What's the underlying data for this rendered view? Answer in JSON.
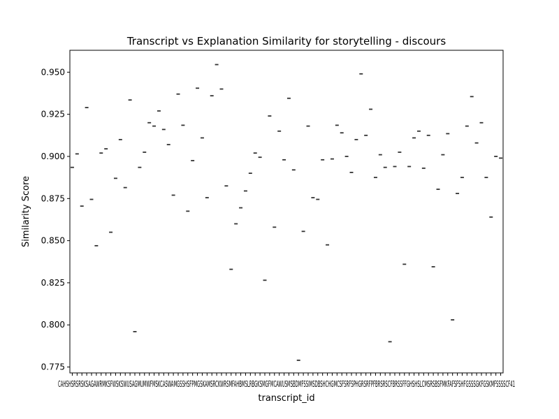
{
  "chart_data": {
    "type": "box",
    "title": "Transcript vs Explanation Similarity for storytelling - discours",
    "xlabel": "transcript_id",
    "ylabel": "Similarity Score",
    "ylim": [
      0.7715,
      0.963
    ],
    "yticks": [
      0.775,
      0.8,
      0.825,
      0.85,
      0.875,
      0.9,
      0.925,
      0.95
    ],
    "ytick_labels": [
      "0.775",
      "0.800",
      "0.825",
      "0.850",
      "0.875",
      "0.900",
      "0.925",
      "0.950"
    ],
    "grid": false,
    "legend": "none",
    "x_labels_truncated": true,
    "first_xtick_label": "CA",
    "last_xtick_label": "41",
    "overlapping_xtick_text": "CAHSHSRSRSKSAGAWRMKSFWSKSWUSAGMUMWFMSKCASWAMGSSHSFPMGSKAMSRCKWRSMFAHBMSLRBGKSMGFMCAWUSMSBDMFSSIMSDBSHCHGMCSFSRFSPHGRSRFPFBRSRSCFBRSSFFGHSHSLCMSRSBSFMKFAFSFSHFGSSSGKFGSKMFSSSSCF41",
    "values": [
      0.8935,
      0.9015,
      0.8705,
      0.929,
      0.8745,
      0.847,
      0.902,
      0.9045,
      0.855,
      0.887,
      0.91,
      0.8815,
      0.9335,
      0.796,
      0.8935,
      0.9025,
      0.92,
      0.918,
      0.927,
      0.916,
      0.907,
      0.877,
      0.937,
      0.9185,
      0.8675,
      0.8975,
      0.9405,
      0.911,
      0.8755,
      0.936,
      0.9545,
      0.94,
      0.8825,
      0.833,
      0.86,
      0.8695,
      0.8795,
      0.89,
      0.902,
      0.8995,
      0.8265,
      0.924,
      0.858,
      0.915,
      0.898,
      0.9345,
      0.892,
      0.779,
      0.8555,
      0.918,
      0.8755,
      0.8745,
      0.898,
      0.8475,
      0.8985,
      0.9185,
      0.914,
      0.9,
      0.8905,
      0.91,
      0.949,
      0.9125,
      0.928,
      0.8875,
      0.901,
      0.8935,
      0.79,
      0.894,
      0.9025,
      0.836,
      0.894,
      0.911,
      0.915,
      0.893,
      0.9125,
      0.8345,
      0.8805,
      0.901,
      0.9135,
      0.803,
      0.878,
      0.8875,
      0.918,
      0.9355,
      0.908,
      0.92,
      0.8875,
      0.864,
      0.9,
      0.899
    ],
    "colors": {
      "median": "#333333",
      "axis": "#000000",
      "background": "#ffffff"
    }
  }
}
